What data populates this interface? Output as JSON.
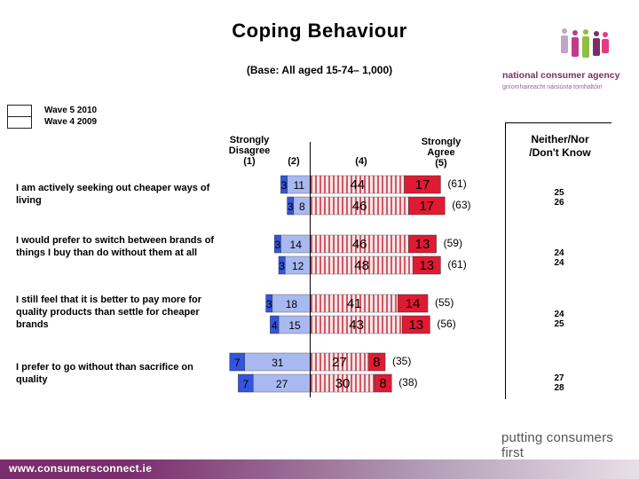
{
  "title": "Coping Behaviour",
  "base": "(Base: All aged 15-74– 1,000)",
  "legend": {
    "wave5": "Wave 5 2010",
    "wave4": "Wave 4 2009"
  },
  "headers": {
    "sd": [
      "Strongly",
      "Disagree",
      "(1)"
    ],
    "c2": "(2)",
    "c4": "(4)",
    "sa": [
      "Strongly",
      "Agree",
      "(5)"
    ],
    "neither": [
      "Neither/Nor",
      "/Don't Know"
    ]
  },
  "colors": {
    "strongly_disagree": "#3355dd",
    "disagree": "#a8b8f0",
    "agree_hatch": "#cc3344",
    "strongly_agree": "#e01a33",
    "footer": "#7a2d6b"
  },
  "tagline": "putting consumers first",
  "footer_url": "www.consumersconnect.ie",
  "logo": {
    "line1": "national consumer agency",
    "line2": "gníomhaireacht náisiúnta tomhaltóirí"
  },
  "chart_data": {
    "type": "bar",
    "orientation": "horizontal-diverging",
    "title": "Coping Behaviour",
    "series_names": [
      "Strongly Disagree (1)",
      "(2)",
      "(4)",
      "Strongly Agree (5)",
      "Neither/Nor /Don't Know"
    ],
    "rows": [
      {
        "label": "I am actively seeking out cheaper ways of living",
        "waves": [
          {
            "wave": "Wave 5 2010",
            "sd": 3,
            "d": 11,
            "a": 44,
            "sa": 17,
            "agree_total": "(61)",
            "neither": 25
          },
          {
            "wave": "Wave 4 2009",
            "sd": 3,
            "d": 8,
            "a": 46,
            "sa": 17,
            "agree_total": "(63)",
            "neither": 26
          }
        ]
      },
      {
        "label": "I would prefer to switch between brands of things I buy than do without them at all",
        "waves": [
          {
            "wave": "Wave 5 2010",
            "sd": 3,
            "d": 14,
            "a": 46,
            "sa": 13,
            "agree_total": "(59)",
            "neither": 24
          },
          {
            "wave": "Wave 4 2009",
            "sd": 3,
            "d": 12,
            "a": 48,
            "sa": 13,
            "agree_total": "(61)",
            "neither": 24
          }
        ]
      },
      {
        "label": "I still feel that it is better to pay more for quality products than settle for cheaper brands",
        "waves": [
          {
            "wave": "Wave 5 2010",
            "sd": 3,
            "d": 18,
            "a": 41,
            "sa": 14,
            "agree_total": "(55)",
            "neither": 24
          },
          {
            "wave": "Wave 4 2009",
            "sd": 4,
            "d": 15,
            "a": 43,
            "sa": 13,
            "agree_total": "(56)",
            "neither": 25
          }
        ]
      },
      {
        "label": "I prefer to go without than sacrifice on quality",
        "waves": [
          {
            "wave": "Wave 5 2010",
            "sd": 7,
            "d": 31,
            "a": 27,
            "sa": 8,
            "agree_total": "(35)",
            "neither": 27
          },
          {
            "wave": "Wave 4 2009",
            "sd": 7,
            "d": 27,
            "a": 30,
            "sa": 8,
            "agree_total": "(38)",
            "neither": 28
          }
        ]
      }
    ]
  }
}
